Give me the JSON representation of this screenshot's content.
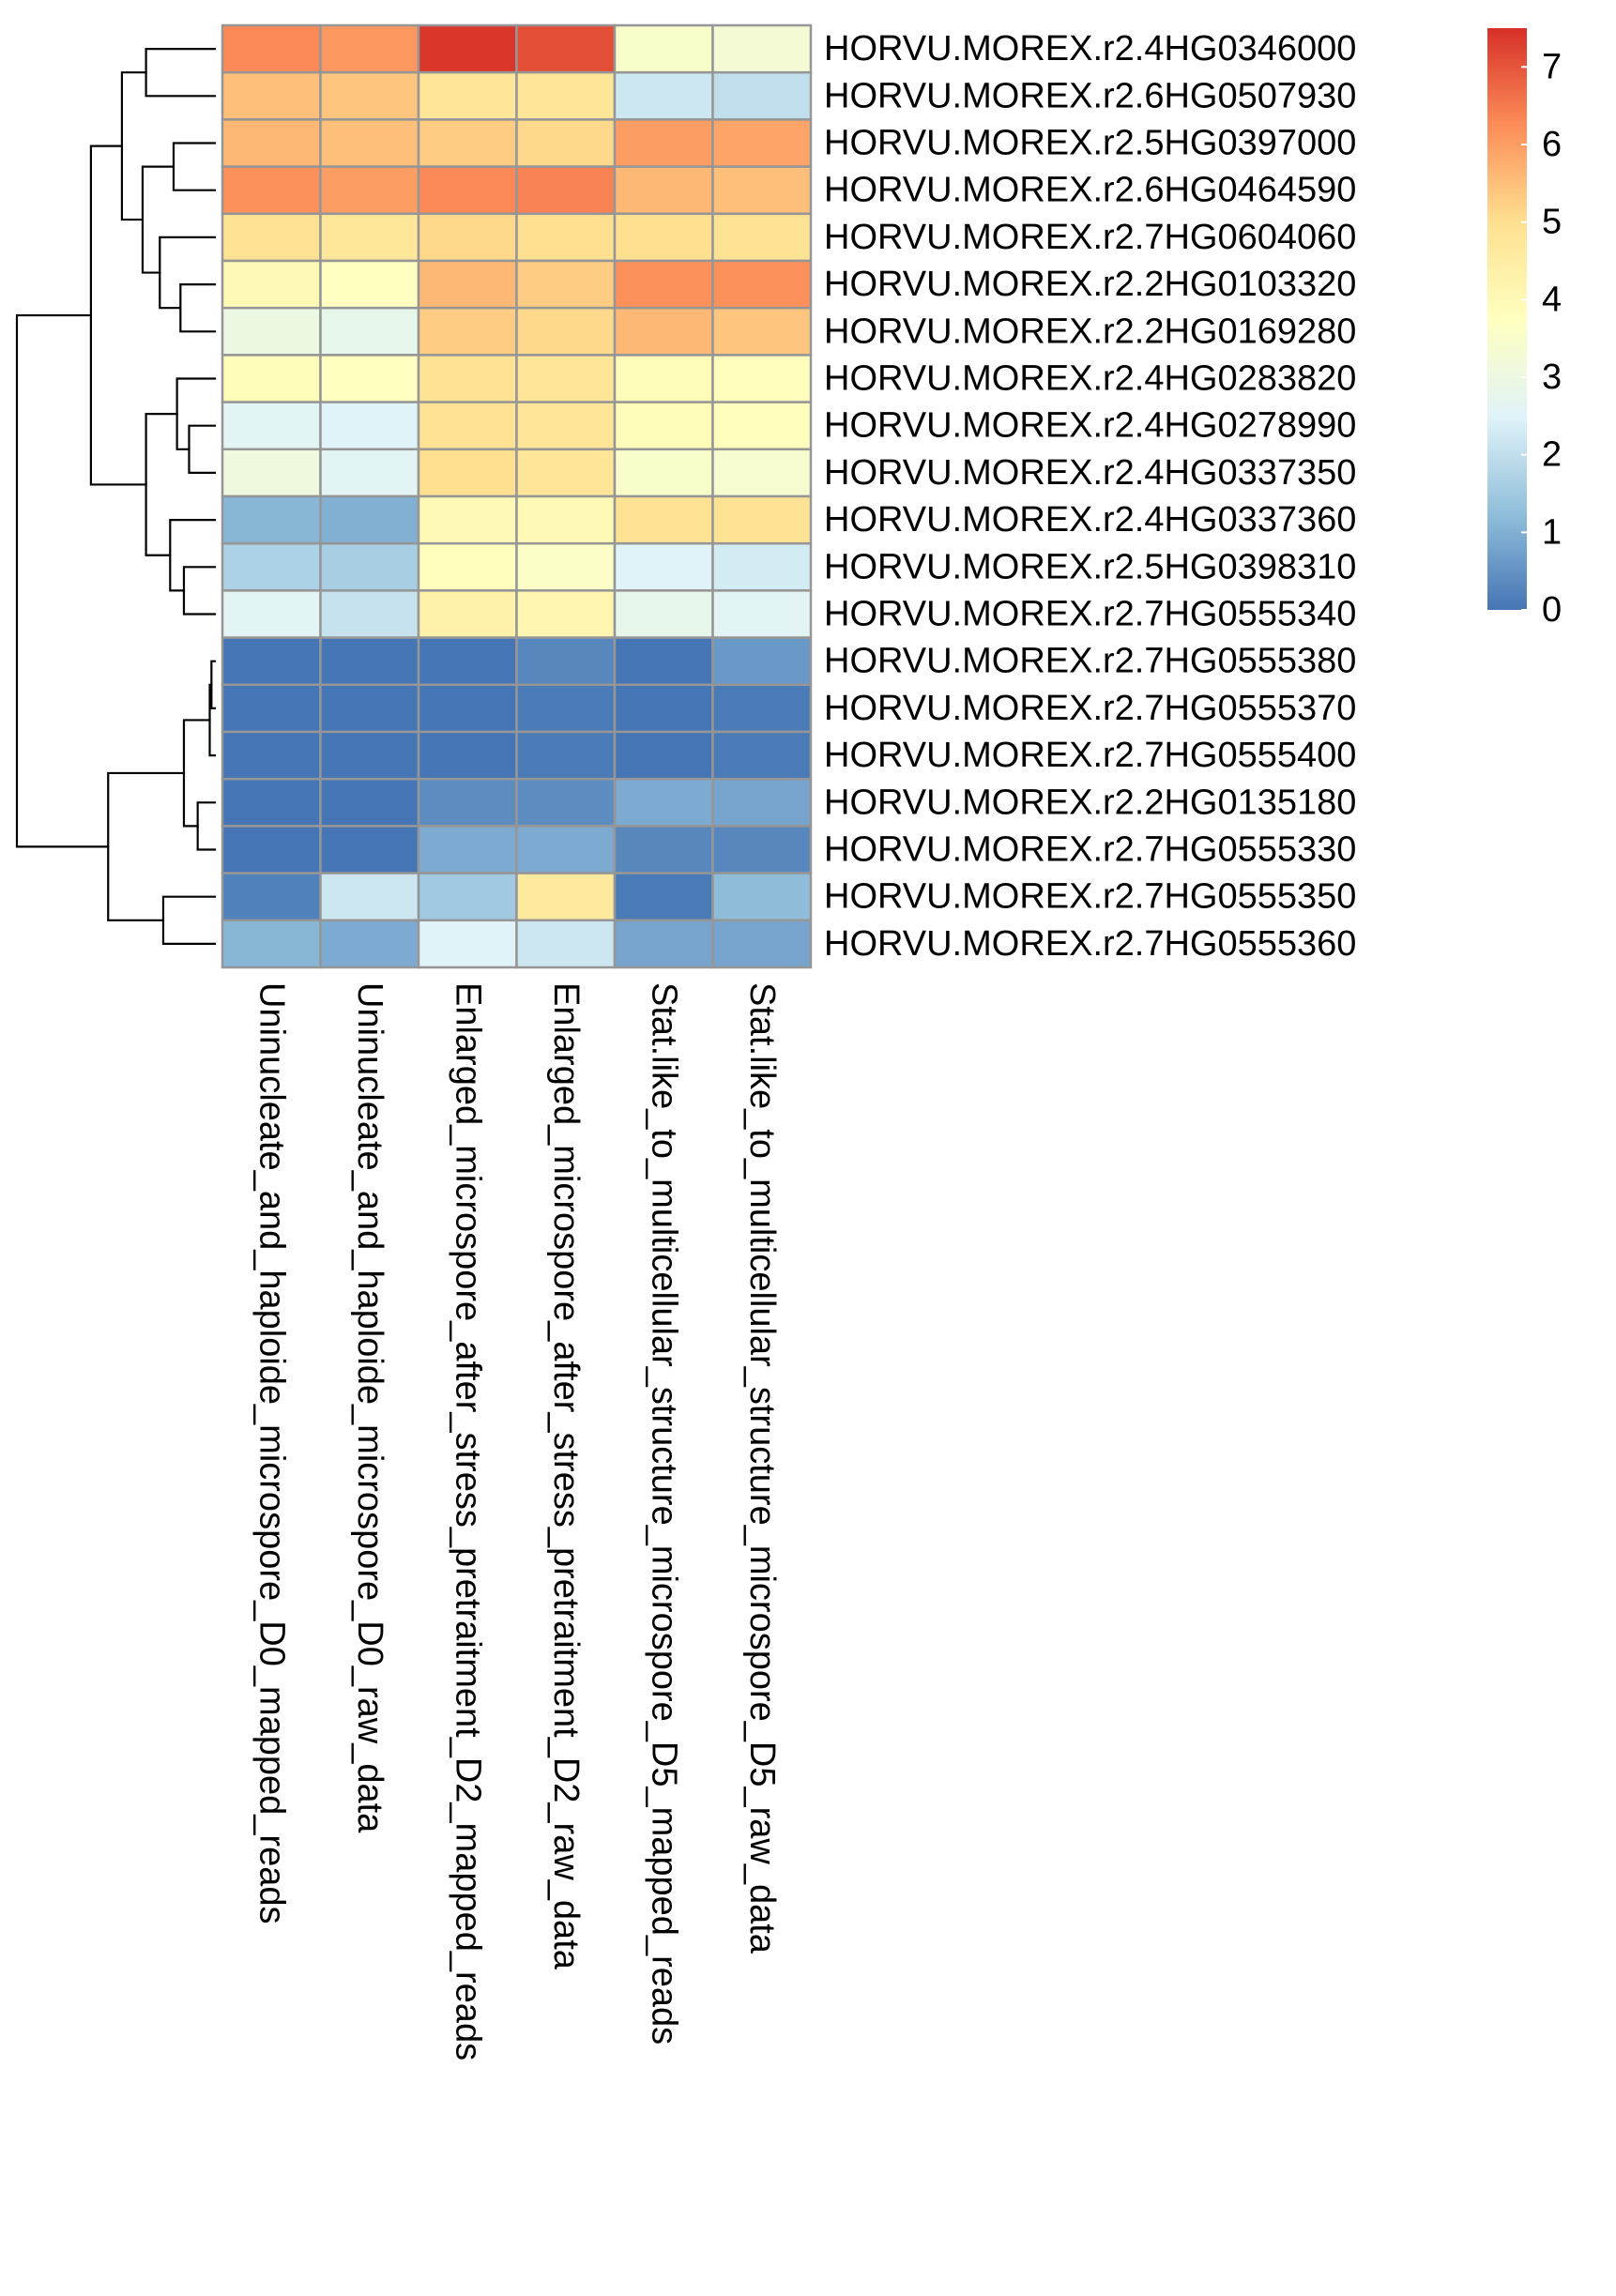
{
  "chart_data": {
    "type": "heatmap",
    "title": "",
    "rows": [
      "HORVU.MOREX.r2.4HG0346000",
      "HORVU.MOREX.r2.6HG0507930",
      "HORVU.MOREX.r2.5HG0397000",
      "HORVU.MOREX.r2.6HG0464590",
      "HORVU.MOREX.r2.7HG0604060",
      "HORVU.MOREX.r2.2HG0103320",
      "HORVU.MOREX.r2.2HG0169280",
      "HORVU.MOREX.r2.4HG0283820",
      "HORVU.MOREX.r2.4HG0278990",
      "HORVU.MOREX.r2.4HG0337350",
      "HORVU.MOREX.r2.4HG0337360",
      "HORVU.MOREX.r2.5HG0398310",
      "HORVU.MOREX.r2.7HG0555340",
      "HORVU.MOREX.r2.7HG0555380",
      "HORVU.MOREX.r2.7HG0555370",
      "HORVU.MOREX.r2.7HG0555400",
      "HORVU.MOREX.r2.2HG0135180",
      "HORVU.MOREX.r2.7HG0555330",
      "HORVU.MOREX.r2.7HG0555350",
      "HORVU.MOREX.r2.7HG0555360"
    ],
    "columns": [
      "Uninucleate_and_haploide_microspore_D0_mapped_reads",
      "Uninucleate_and_haploide_microspore_D0_raw_data",
      "Enlarged_microspore_after_stress_pretraitment_D2_mapped_reads",
      "Enlarged_microspore_after_stress_pretraitment_D2_raw_data",
      "Stat.like_to_multicellular_structure_microspore_D5_mapped_reads",
      "Stat.like_to_multicellular_structure_microspore_D5_raw_data"
    ],
    "values": [
      [
        6.3,
        6.1,
        7.4,
        7.1,
        3.5,
        3.3
      ],
      [
        5.5,
        5.4,
        4.8,
        4.8,
        2.2,
        2.0
      ],
      [
        5.6,
        5.5,
        5.3,
        5.1,
        6.0,
        5.9
      ],
      [
        6.2,
        6.0,
        6.3,
        6.4,
        5.6,
        5.5
      ],
      [
        4.9,
        4.7,
        5.1,
        5.0,
        5.0,
        4.9
      ],
      [
        4.0,
        3.7,
        5.6,
        5.3,
        6.2,
        6.2
      ],
      [
        3.0,
        2.8,
        5.3,
        5.1,
        5.6,
        5.4
      ],
      [
        3.9,
        3.7,
        4.9,
        4.8,
        3.9,
        3.8
      ],
      [
        2.6,
        2.5,
        4.9,
        4.8,
        3.9,
        3.8
      ],
      [
        3.1,
        2.6,
        5.0,
        4.8,
        3.5,
        3.4
      ],
      [
        1.1,
        1.0,
        4.0,
        4.0,
        4.9,
        4.9
      ],
      [
        1.7,
        1.6,
        3.8,
        3.6,
        2.5,
        2.3
      ],
      [
        2.6,
        2.1,
        4.3,
        4.1,
        2.8,
        2.6
      ],
      [
        0.0,
        0.0,
        0.0,
        0.3,
        0.0,
        0.6
      ],
      [
        0.0,
        0.0,
        0.0,
        0.1,
        0.0,
        0.1
      ],
      [
        0.0,
        0.0,
        0.0,
        0.1,
        0.0,
        0.1
      ],
      [
        0.0,
        0.0,
        0.4,
        0.4,
        0.9,
        0.8
      ],
      [
        0.0,
        0.0,
        0.9,
        0.9,
        0.3,
        0.3
      ],
      [
        0.2,
        2.2,
        1.5,
        4.6,
        0.1,
        1.2
      ],
      [
        1.1,
        0.9,
        2.5,
        2.2,
        0.8,
        0.8
      ]
    ],
    "legend": {
      "ticks": [
        0,
        1,
        2,
        3,
        4,
        5,
        6,
        7
      ],
      "range": [
        0,
        7.5
      ],
      "colors": [
        "#4575B4",
        "#91BFDB",
        "#E0F3F8",
        "#FFFFBF",
        "#FEE090",
        "#FC8D59",
        "#D73027"
      ]
    },
    "cell_border_color": "#969696",
    "row_dendrogram": {
      "merges": [
        [
          -14,
          -15
        ],
        [
          -16,
          1
        ],
        [
          -17,
          -18
        ],
        [
          2,
          3
        ],
        [
          -19,
          -20
        ],
        [
          4,
          5
        ],
        [
          -9,
          -10
        ],
        [
          -8,
          7
        ],
        [
          -12,
          -13
        ],
        [
          -11,
          9
        ],
        [
          8,
          10
        ],
        [
          -6,
          -7
        ],
        [
          -5,
          12
        ],
        [
          -3,
          -4
        ],
        [
          13,
          14
        ],
        [
          -1,
          -2
        ],
        [
          15,
          16
        ],
        [
          11,
          17
        ],
        [
          6,
          18
        ]
      ],
      "heights": [
        0.2,
        0.3,
        1.0,
        1.8,
        3.0,
        6.2,
        1.5,
        2.2,
        1.8,
        2.6,
        4.0,
        2.0,
        3.2,
        2.4,
        4.2,
        4.0,
        5.4,
        7.2,
        11.5
      ]
    }
  }
}
